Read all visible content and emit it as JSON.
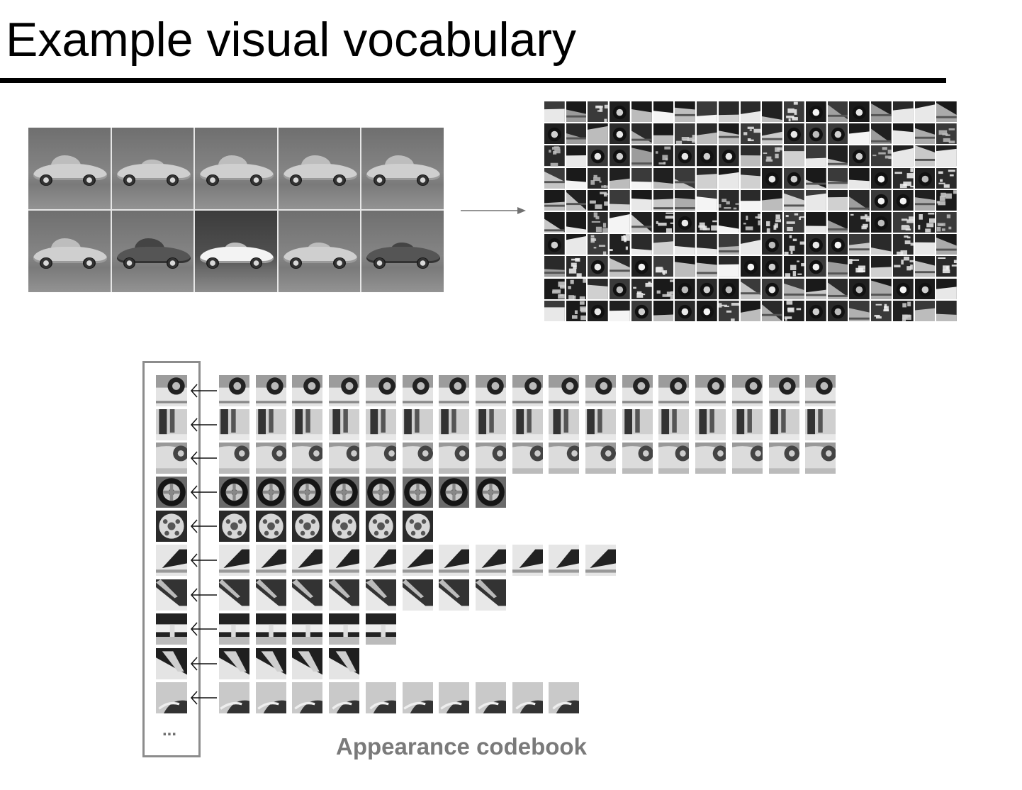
{
  "slide": {
    "title": "Example visual vocabulary"
  },
  "training_images": {
    "rows": 2,
    "cols": 5,
    "cells": [
      {
        "car": "sedan",
        "tone": "light"
      },
      {
        "car": "roadster",
        "tone": "light"
      },
      {
        "car": "coupe",
        "tone": "light"
      },
      {
        "car": "sports",
        "tone": "mid"
      },
      {
        "car": "beetle",
        "tone": "mid"
      },
      {
        "car": "coupe",
        "tone": "mid"
      },
      {
        "car": "sports",
        "tone": "dark"
      },
      {
        "car": "supercar",
        "tone": "white"
      },
      {
        "car": "convertible",
        "tone": "light"
      },
      {
        "car": "roadster",
        "tone": "dark"
      }
    ]
  },
  "patch_collage": {
    "rows": 10,
    "cols": 19
  },
  "codebook": {
    "caption": "Appearance codebook",
    "ellipsis": "...",
    "rows": [
      {
        "type": "wheel-top",
        "members": 17
      },
      {
        "type": "door-edge",
        "members": 17
      },
      {
        "type": "wheel-arch",
        "members": 17
      },
      {
        "type": "wheel",
        "members": 8
      },
      {
        "type": "hubcap",
        "members": 6
      },
      {
        "type": "windshield",
        "members": 11
      },
      {
        "type": "rear-window",
        "members": 8
      },
      {
        "type": "window-edge",
        "members": 5
      },
      {
        "type": "pillar",
        "members": 4
      },
      {
        "type": "bumper-wheel",
        "members": 10
      }
    ]
  },
  "colors": {
    "frame": "#8c8c8c",
    "caption": "#7a7a7a",
    "rule": "#000000"
  }
}
